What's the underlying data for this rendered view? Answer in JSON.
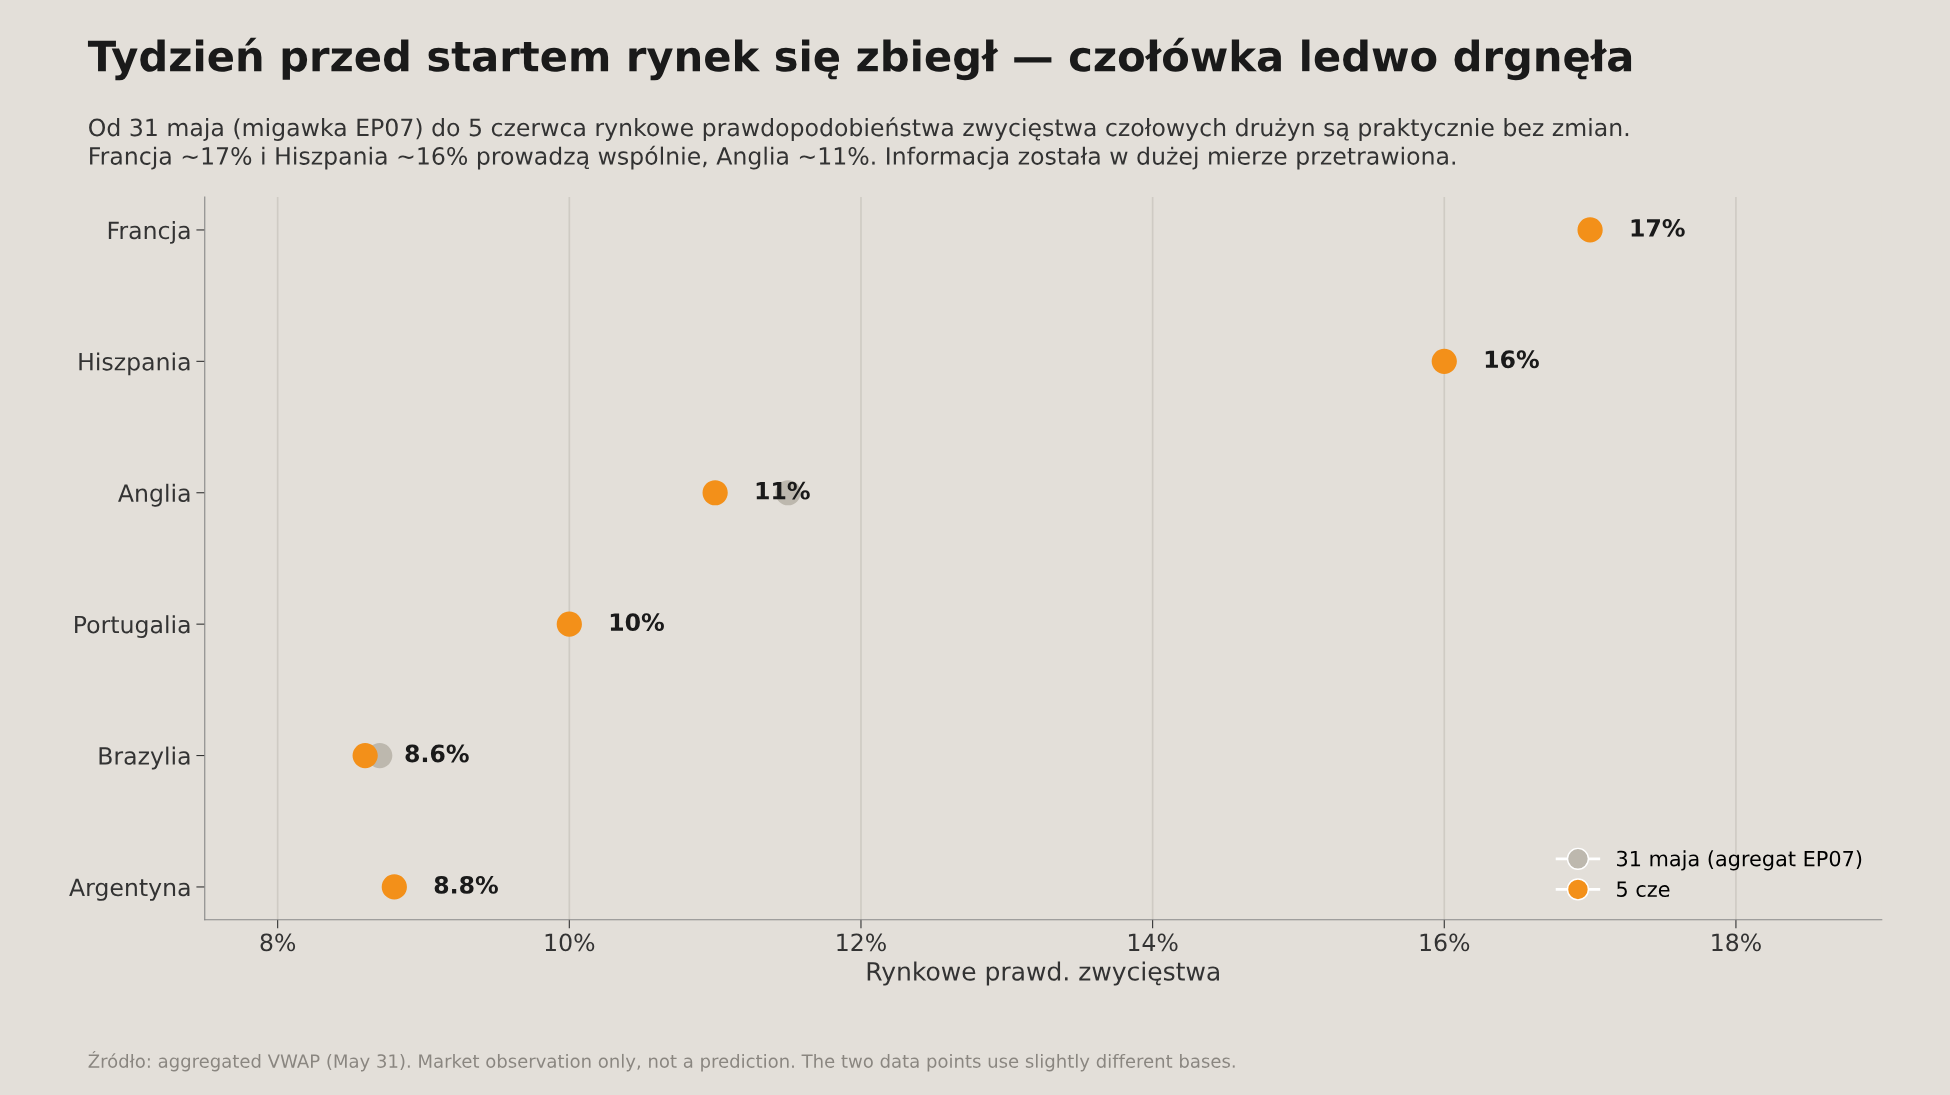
{
  "chart_data": {
    "type": "scatter",
    "orientation": "horizontal",
    "title": "Tydzień przed startem rynek się zbiegł — czołówka ledwo drgnęła",
    "subtitle": "Od 31 maja (migawka EP07) do 5 czerwca rynkowe prawdopodobieństwa zwycięstwa czołowych drużyn są praktycznie bez zmian.\nFrancja ~17% i Hiszpania ~16% prowadzą wspólnie, Anglia ~11%. Informacja została w dużej mierze przetrawiona.",
    "xlabel": "Rynkowe prawd. zwycięstwa",
    "categories": [
      "Francja",
      "Hiszpania",
      "Anglia",
      "Portugalia",
      "Brazylia",
      "Argentyna"
    ],
    "series": [
      {
        "name": "31 maja (agregat EP07)",
        "color": "#bdb8ae",
        "values": [
          null,
          null,
          11.5,
          null,
          8.7,
          null
        ]
      },
      {
        "name": "5 cze",
        "color": "#f39019",
        "values": [
          17,
          16,
          11,
          10,
          8.6,
          8.8
        ],
        "value_labels": [
          "17%",
          "16%",
          "11%",
          "10%",
          "8.6%",
          "8.8%"
        ]
      }
    ],
    "xlim": [
      7.5,
      19
    ],
    "xticks": [
      {
        "value": 8,
        "label": "8%"
      },
      {
        "value": 10,
        "label": "10%"
      },
      {
        "value": 12,
        "label": "12%"
      },
      {
        "value": 14,
        "label": "14%"
      },
      {
        "value": 16,
        "label": "16%"
      },
      {
        "value": 18,
        "label": "18%"
      }
    ],
    "grid": "x",
    "legend": "bottom right",
    "marker": "circle",
    "annotations": [
      "Źródło: aggregated VWAP (May 31). Market observation only, not a prediction. The two data points use slightly different bases."
    ]
  }
}
